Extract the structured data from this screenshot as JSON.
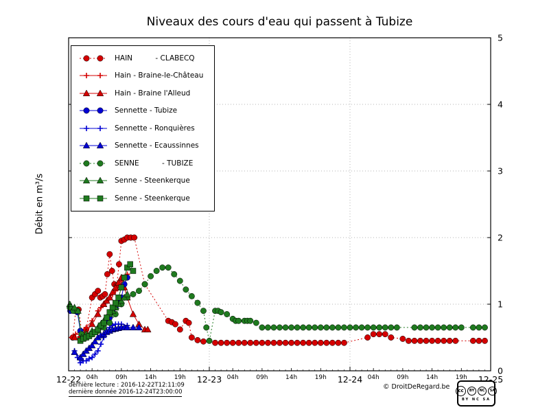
{
  "footer": {
    "line1": "dernière lecture : 2016-12-22T12:11:09",
    "line2": "dernière donnée  2016-12-24T23:00:00",
    "credit": "© DroitDeRegard.be",
    "license": {
      "cc": "cc",
      "by": "BY",
      "nc": "NC",
      "sa": "SA",
      "caption": "BY NC SA"
    }
  },
  "chart_data": {
    "type": "line",
    "title": "Niveaux des cours d'eau qui passent à Tubize",
    "ylabel": "Débit en m³/s",
    "xlabel": "",
    "ylim": [
      0,
      5
    ],
    "xlim_hours": [
      0,
      72
    ],
    "y_ticks": [
      0,
      1,
      2,
      3,
      4,
      5
    ],
    "x_major_ticks": [
      {
        "t": 0,
        "label": "12-22"
      },
      {
        "t": 24,
        "label": "12-23"
      },
      {
        "t": 48,
        "label": "12-24"
      },
      {
        "t": 72,
        "label": "12-25"
      }
    ],
    "x_minor_ticks": [
      {
        "t": 4,
        "label": "04h"
      },
      {
        "t": 9,
        "label": "09h"
      },
      {
        "t": 14,
        "label": "14h"
      },
      {
        "t": 19,
        "label": "19h"
      },
      {
        "t": 28,
        "label": "04h"
      },
      {
        "t": 33,
        "label": "09h"
      },
      {
        "t": 38,
        "label": "14h"
      },
      {
        "t": 43,
        "label": "19h"
      },
      {
        "t": 52,
        "label": "04h"
      },
      {
        "t": 57,
        "label": "09h"
      },
      {
        "t": 62,
        "label": "14h"
      },
      {
        "t": 67,
        "label": "19h"
      }
    ],
    "grid": {
      "h": [
        1,
        2,
        3,
        4
      ],
      "v": [
        24,
        48
      ]
    },
    "legend_position": "upper-left",
    "series": [
      {
        "name": "hain-clabecq",
        "label": "HAIN          - CLABECQ",
        "color": "#d40000",
        "marker": "circle",
        "line": "dotted",
        "points": [
          [
            0.7,
            0.5
          ],
          [
            1.2,
            0.9
          ],
          [
            1.7,
            0.92
          ],
          [
            2.3,
            0.55
          ],
          [
            3,
            0.62
          ],
          [
            4,
            1.1
          ],
          [
            4.5,
            1.15
          ],
          [
            5,
            1.2
          ],
          [
            5.4,
            1.1
          ],
          [
            5.8,
            1.12
          ],
          [
            6.2,
            1.15
          ],
          [
            6.6,
            1.45
          ],
          [
            7,
            1.75
          ],
          [
            7.4,
            1.5
          ],
          [
            7.8,
            1.3
          ],
          [
            8.2,
            1.28
          ],
          [
            8.6,
            1.6
          ],
          [
            9,
            1.95
          ],
          [
            9.5,
            1.97
          ],
          [
            10,
            2.0
          ],
          [
            10.6,
            2.0
          ],
          [
            11.2,
            2.0
          ],
          [
            13,
            1.3
          ],
          [
            17,
            0.75
          ],
          [
            17.6,
            0.73
          ],
          [
            18.2,
            0.7
          ],
          [
            19,
            0.62
          ],
          [
            20,
            0.75
          ],
          [
            20.5,
            0.72
          ],
          [
            21,
            0.5
          ],
          [
            22,
            0.46
          ],
          [
            23,
            0.44
          ],
          [
            25,
            0.42
          ],
          [
            26,
            0.42
          ],
          [
            27,
            0.42
          ],
          [
            28,
            0.42
          ],
          [
            29,
            0.42
          ],
          [
            30,
            0.42
          ],
          [
            31,
            0.42
          ],
          [
            32,
            0.42
          ],
          [
            33,
            0.42
          ],
          [
            34,
            0.42
          ],
          [
            35,
            0.42
          ],
          [
            36,
            0.42
          ],
          [
            37,
            0.42
          ],
          [
            38,
            0.42
          ],
          [
            39,
            0.42
          ],
          [
            40,
            0.42
          ],
          [
            41,
            0.42
          ],
          [
            42,
            0.42
          ],
          [
            43,
            0.42
          ],
          [
            44,
            0.42
          ],
          [
            45,
            0.42
          ],
          [
            46,
            0.42
          ],
          [
            47,
            0.42
          ],
          [
            51,
            0.5
          ],
          [
            52,
            0.55
          ],
          [
            53,
            0.55
          ],
          [
            54,
            0.55
          ],
          [
            55,
            0.5
          ],
          [
            57,
            0.48
          ],
          [
            58,
            0.45
          ],
          [
            59,
            0.45
          ],
          [
            60,
            0.45
          ],
          [
            61,
            0.45
          ],
          [
            62,
            0.45
          ],
          [
            63,
            0.45
          ],
          [
            64,
            0.45
          ],
          [
            65,
            0.45
          ],
          [
            66,
            0.45
          ],
          [
            69,
            0.45
          ],
          [
            70,
            0.45
          ],
          [
            71,
            0.45
          ]
        ]
      },
      {
        "name": "hain-braine-le-chateau",
        "label": "Hain - Braine-le-Château",
        "color": "#d40000",
        "marker": "plus",
        "line": "solid",
        "points": [
          [
            0.5,
            0.5
          ],
          [
            1.2,
            0.55
          ],
          [
            2,
            0.6
          ],
          [
            3,
            0.65
          ],
          [
            4,
            0.75
          ],
          [
            5,
            0.9
          ],
          [
            5.5,
            0.95
          ],
          [
            6,
            1.0
          ],
          [
            6.5,
            1.05
          ],
          [
            7,
            1.1
          ],
          [
            7.5,
            1.15
          ],
          [
            8,
            1.2
          ],
          [
            8.5,
            1.3
          ],
          [
            9,
            1.35
          ],
          [
            9.5,
            1.4
          ],
          [
            10,
            1.45
          ]
        ]
      },
      {
        "name": "hain-braine-l-alleud",
        "label": "Hain - Braine l'Alleud",
        "color": "#d40000",
        "marker": "triangle",
        "line": "solid",
        "points": [
          [
            1,
            0.5
          ],
          [
            2,
            0.52
          ],
          [
            3,
            0.58
          ],
          [
            4,
            0.7
          ],
          [
            5,
            0.85
          ],
          [
            6,
            1.0
          ],
          [
            6.5,
            1.05
          ],
          [
            7,
            1.1
          ],
          [
            7.5,
            1.18
          ],
          [
            8,
            1.25
          ],
          [
            8.5,
            1.32
          ],
          [
            9,
            1.4
          ],
          [
            9.5,
            1.25
          ],
          [
            10,
            1.1
          ],
          [
            11,
            0.85
          ],
          [
            12,
            0.7
          ],
          [
            13,
            0.62
          ],
          [
            13.5,
            0.62
          ]
        ]
      },
      {
        "name": "sennette-tubize",
        "label": "Sennette - Tubize",
        "color": "#0000d4",
        "marker": "circle",
        "line": "solid",
        "points": [
          [
            0.3,
            0.9
          ],
          [
            1,
            0.9
          ],
          [
            1.5,
            0.88
          ],
          [
            2,
            0.6
          ],
          [
            3,
            0.5
          ],
          [
            4,
            0.55
          ],
          [
            5,
            0.62
          ],
          [
            5.5,
            0.66
          ],
          [
            6,
            0.7
          ],
          [
            6.5,
            0.75
          ],
          [
            7,
            0.8
          ],
          [
            7.5,
            0.88
          ],
          [
            8,
            0.95
          ],
          [
            8.5,
            1.02
          ],
          [
            9,
            1.1
          ],
          [
            9.5,
            1.3
          ],
          [
            10,
            1.4
          ]
        ]
      },
      {
        "name": "sennette-ronquieres",
        "label": "Sennette - Ronquières",
        "color": "#0000d4",
        "marker": "plus",
        "line": "solid",
        "points": [
          [
            1,
            0.3
          ],
          [
            1.5,
            0.2
          ],
          [
            2,
            0.12
          ],
          [
            2.5,
            0.15
          ],
          [
            3,
            0.15
          ],
          [
            3.5,
            0.18
          ],
          [
            4,
            0.2
          ],
          [
            4.5,
            0.25
          ],
          [
            5,
            0.3
          ],
          [
            5.5,
            0.4
          ],
          [
            6,
            0.5
          ],
          [
            6.5,
            0.6
          ],
          [
            7,
            0.65
          ],
          [
            7.5,
            0.68
          ],
          [
            8,
            0.7
          ],
          [
            8.5,
            0.7
          ],
          [
            9,
            0.7
          ],
          [
            10,
            0.68
          ]
        ]
      },
      {
        "name": "sennette-ecaussinnes",
        "label": "Sennette - Ecaussinnes",
        "color": "#0000d4",
        "marker": "triangle",
        "line": "solid",
        "points": [
          [
            1,
            0.28
          ],
          [
            2,
            0.2
          ],
          [
            2.5,
            0.25
          ],
          [
            3,
            0.3
          ],
          [
            3.5,
            0.34
          ],
          [
            4,
            0.38
          ],
          [
            4.5,
            0.44
          ],
          [
            5,
            0.5
          ],
          [
            5.5,
            0.53
          ],
          [
            6,
            0.55
          ],
          [
            6.5,
            0.58
          ],
          [
            7,
            0.6
          ],
          [
            7.5,
            0.62
          ],
          [
            8,
            0.63
          ],
          [
            8.5,
            0.64
          ],
          [
            9,
            0.65
          ],
          [
            9.5,
            0.65
          ],
          [
            10,
            0.65
          ],
          [
            11,
            0.65
          ],
          [
            12,
            0.65
          ]
        ]
      },
      {
        "name": "senne-tubize",
        "label": "SENNE          - TUBIZE",
        "color": "#1f7a1f",
        "marker": "circle",
        "line": "dotted",
        "points": [
          [
            0.2,
            0.95
          ],
          [
            0.8,
            0.9
          ],
          [
            1.5,
            0.9
          ],
          [
            2.2,
            0.55
          ],
          [
            3,
            0.5
          ],
          [
            4,
            0.55
          ],
          [
            5,
            0.6
          ],
          [
            6,
            0.65
          ],
          [
            7,
            0.72
          ],
          [
            8,
            0.85
          ],
          [
            9,
            1.0
          ],
          [
            10,
            1.1
          ],
          [
            11,
            1.15
          ],
          [
            12,
            1.2
          ],
          [
            13,
            1.3
          ],
          [
            14,
            1.42
          ],
          [
            15,
            1.5
          ],
          [
            16,
            1.55
          ],
          [
            17,
            1.55
          ],
          [
            18,
            1.45
          ],
          [
            19,
            1.35
          ],
          [
            20,
            1.22
          ],
          [
            21,
            1.12
          ],
          [
            22,
            1.02
          ],
          [
            23,
            0.9
          ],
          [
            23.5,
            0.65
          ],
          [
            24,
            0.45
          ],
          [
            25,
            0.9
          ],
          [
            25.5,
            0.9
          ],
          [
            26,
            0.88
          ],
          [
            27,
            0.85
          ],
          [
            28,
            0.78
          ],
          [
            28.5,
            0.75
          ],
          [
            29,
            0.75
          ],
          [
            30,
            0.75
          ],
          [
            30.5,
            0.75
          ],
          [
            31,
            0.75
          ],
          [
            32,
            0.72
          ],
          [
            33,
            0.65
          ],
          [
            34,
            0.65
          ],
          [
            35,
            0.65
          ],
          [
            36,
            0.65
          ],
          [
            37,
            0.65
          ],
          [
            38,
            0.65
          ],
          [
            39,
            0.65
          ],
          [
            40,
            0.65
          ],
          [
            41,
            0.65
          ],
          [
            42,
            0.65
          ],
          [
            43,
            0.65
          ],
          [
            44,
            0.65
          ],
          [
            45,
            0.65
          ],
          [
            46,
            0.65
          ],
          [
            47,
            0.65
          ],
          [
            48,
            0.65
          ],
          [
            49,
            0.65
          ],
          [
            50,
            0.65
          ],
          [
            51,
            0.65
          ],
          [
            52,
            0.65
          ],
          [
            53,
            0.65
          ],
          [
            54,
            0.65
          ],
          [
            55,
            0.65
          ],
          [
            56,
            0.65
          ],
          [
            59,
            0.65
          ],
          [
            60,
            0.65
          ],
          [
            61,
            0.65
          ],
          [
            62,
            0.65
          ],
          [
            63,
            0.65
          ],
          [
            64,
            0.65
          ],
          [
            65,
            0.65
          ],
          [
            66,
            0.65
          ],
          [
            67,
            0.65
          ],
          [
            69,
            0.65
          ],
          [
            70,
            0.65
          ],
          [
            71,
            0.65
          ]
        ]
      },
      {
        "name": "senne-steenkerque-1",
        "label": "Senne - Steenkerque",
        "color": "#1f7a1f",
        "marker": "triangle",
        "line": "solid",
        "points": [
          [
            0.2,
            1.0
          ],
          [
            1,
            0.95
          ],
          [
            1.6,
            0.9
          ],
          [
            2.2,
            0.5
          ],
          [
            3,
            0.55
          ],
          [
            4,
            0.6
          ],
          [
            5,
            0.65
          ],
          [
            5.5,
            0.7
          ],
          [
            6,
            0.75
          ],
          [
            6.5,
            0.8
          ],
          [
            7,
            0.85
          ],
          [
            7.5,
            0.9
          ],
          [
            8,
            0.95
          ],
          [
            8.5,
            1.0
          ],
          [
            9,
            1.05
          ],
          [
            9.5,
            1.1
          ],
          [
            10,
            1.15
          ]
        ]
      },
      {
        "name": "senne-steenkerque-2",
        "label": "Senne - Steenkerque",
        "color": "#1f7a1f",
        "marker": "square",
        "line": "solid",
        "points": [
          [
            2,
            0.45
          ],
          [
            2.5,
            0.48
          ],
          [
            3,
            0.5
          ],
          [
            3.5,
            0.52
          ],
          [
            4,
            0.55
          ],
          [
            4.5,
            0.58
          ],
          [
            5,
            0.62
          ],
          [
            5.5,
            0.68
          ],
          [
            6,
            0.72
          ],
          [
            6.5,
            0.8
          ],
          [
            7,
            0.88
          ],
          [
            7.5,
            0.95
          ],
          [
            8,
            1.02
          ],
          [
            8.5,
            1.1
          ],
          [
            9,
            1.25
          ],
          [
            9.5,
            1.4
          ],
          [
            10,
            1.55
          ],
          [
            10.5,
            1.6
          ],
          [
            11,
            1.5
          ]
        ]
      }
    ]
  }
}
